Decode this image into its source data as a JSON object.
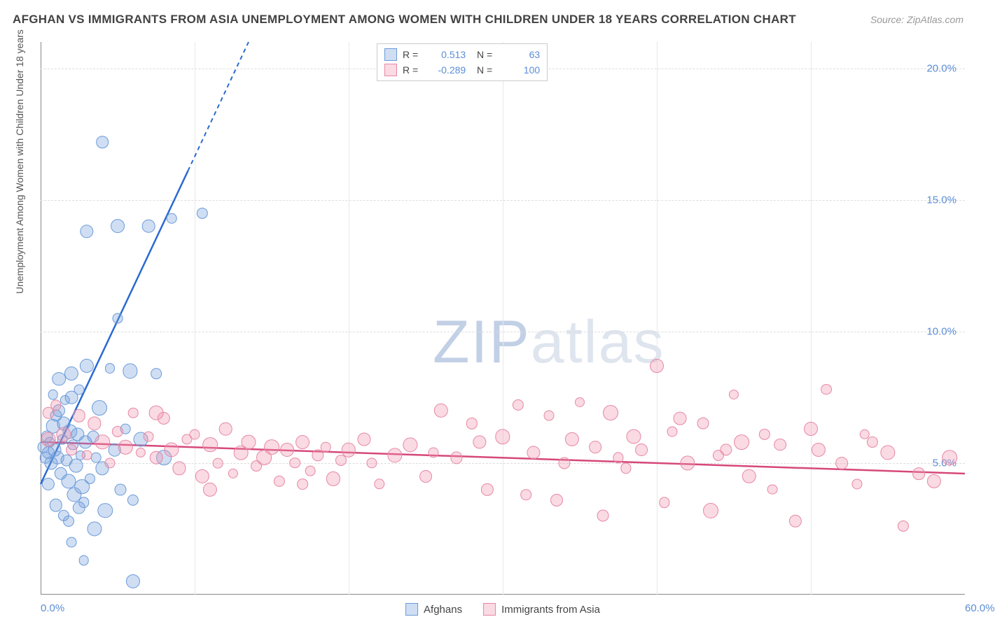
{
  "title": "AFGHAN VS IMMIGRANTS FROM ASIA UNEMPLOYMENT AMONG WOMEN WITH CHILDREN UNDER 18 YEARS CORRELATION CHART",
  "source": "Source: ZipAtlas.com",
  "y_axis_label": "Unemployment Among Women with Children Under 18 years",
  "watermark_a": "ZIP",
  "watermark_b": "atlas",
  "chart": {
    "type": "scatter",
    "xlim": [
      0,
      60
    ],
    "ylim": [
      0,
      21
    ],
    "x_ticks": [
      {
        "v": 0,
        "l": "0.0%"
      },
      {
        "v": 60,
        "l": "60.0%"
      }
    ],
    "y_ticks": [
      {
        "v": 5,
        "l": "5.0%"
      },
      {
        "v": 10,
        "l": "10.0%"
      },
      {
        "v": 15,
        "l": "15.0%"
      },
      {
        "v": 20,
        "l": "20.0%"
      }
    ],
    "grid_h": [
      5,
      10,
      15,
      20
    ],
    "grid_v": [
      10,
      20,
      30,
      40,
      50
    ],
    "background_color": "#ffffff",
    "grid_color": "#dddddd",
    "series": [
      {
        "name": "Afghans",
        "fill": "rgba(120,160,220,0.35)",
        "stroke": "#6a9bd8",
        "r_stat": "0.513",
        "n_stat": "63",
        "trend": {
          "x1": 0,
          "y1": 4.2,
          "x2": 13.5,
          "y2": 21,
          "color": "#2a6ad0",
          "dashFrom": 16.1
        },
        "points": [
          [
            0.2,
            5.6
          ],
          [
            0.3,
            5.2
          ],
          [
            0.4,
            6.0
          ],
          [
            0.5,
            5.4
          ],
          [
            0.6,
            5.8
          ],
          [
            0.7,
            5.0
          ],
          [
            0.8,
            6.4
          ],
          [
            0.9,
            5.5
          ],
          [
            1.0,
            6.8
          ],
          [
            1.1,
            5.2
          ],
          [
            1.2,
            7.0
          ],
          [
            1.3,
            4.6
          ],
          [
            1.4,
            5.9
          ],
          [
            1.5,
            6.5
          ],
          [
            1.6,
            7.4
          ],
          [
            1.7,
            5.1
          ],
          [
            1.8,
            4.3
          ],
          [
            1.9,
            6.2
          ],
          [
            2.0,
            8.4
          ],
          [
            2.1,
            5.7
          ],
          [
            2.2,
            3.8
          ],
          [
            2.3,
            4.9
          ],
          [
            2.4,
            6.1
          ],
          [
            2.5,
            7.8
          ],
          [
            2.6,
            5.3
          ],
          [
            2.7,
            4.1
          ],
          [
            2.8,
            3.5
          ],
          [
            2.9,
            5.8
          ],
          [
            3.0,
            8.7
          ],
          [
            3.2,
            4.4
          ],
          [
            3.4,
            6.0
          ],
          [
            3.6,
            5.2
          ],
          [
            3.8,
            7.1
          ],
          [
            4.0,
            4.8
          ],
          [
            4.2,
            3.2
          ],
          [
            4.5,
            8.6
          ],
          [
            4.8,
            5.5
          ],
          [
            5.0,
            10.5
          ],
          [
            5.2,
            4.0
          ],
          [
            5.5,
            6.3
          ],
          [
            5.8,
            8.5
          ],
          [
            6.0,
            3.6
          ],
          [
            6.5,
            5.9
          ],
          [
            7.0,
            14.0
          ],
          [
            7.5,
            8.4
          ],
          [
            8.0,
            5.2
          ],
          [
            2.0,
            2.0
          ],
          [
            2.8,
            1.3
          ],
          [
            3.5,
            2.5
          ],
          [
            4.0,
            17.2
          ],
          [
            5.0,
            14.0
          ],
          [
            8.5,
            14.3
          ],
          [
            10.5,
            14.5
          ],
          [
            3.0,
            13.8
          ],
          [
            1.5,
            3.0
          ],
          [
            0.5,
            4.2
          ],
          [
            1.0,
            3.4
          ],
          [
            1.8,
            2.8
          ],
          [
            2.5,
            3.3
          ],
          [
            6.0,
            0.5
          ],
          [
            0.8,
            7.6
          ],
          [
            1.2,
            8.2
          ],
          [
            2.0,
            7.5
          ]
        ]
      },
      {
        "name": "Immigrants from Asia",
        "fill": "rgba(240,150,175,0.35)",
        "stroke": "#e688a5",
        "r_stat": "-0.289",
        "n_stat": "100",
        "trend": {
          "x1": 0,
          "y1": 5.8,
          "x2": 60,
          "y2": 4.6,
          "color": "#d6487a"
        },
        "points": [
          [
            0.5,
            5.9
          ],
          [
            1.0,
            7.2
          ],
          [
            1.5,
            6.1
          ],
          [
            2.0,
            5.5
          ],
          [
            2.5,
            6.8
          ],
          [
            3.0,
            5.3
          ],
          [
            3.5,
            6.5
          ],
          [
            4.0,
            5.8
          ],
          [
            4.5,
            5.0
          ],
          [
            5.0,
            6.2
          ],
          [
            5.5,
            5.6
          ],
          [
            6.0,
            6.9
          ],
          [
            6.5,
            5.4
          ],
          [
            7.0,
            6.0
          ],
          [
            7.5,
            5.2
          ],
          [
            8.0,
            6.7
          ],
          [
            8.5,
            5.5
          ],
          [
            9.0,
            4.8
          ],
          [
            9.5,
            5.9
          ],
          [
            10.0,
            6.1
          ],
          [
            10.5,
            4.5
          ],
          [
            11.0,
            5.7
          ],
          [
            11.5,
            5.0
          ],
          [
            12.0,
            6.3
          ],
          [
            12.5,
            4.6
          ],
          [
            13.0,
            5.4
          ],
          [
            13.5,
            5.8
          ],
          [
            14.0,
            4.9
          ],
          [
            14.5,
            5.2
          ],
          [
            15.0,
            5.6
          ],
          [
            15.5,
            4.3
          ],
          [
            16.0,
            5.5
          ],
          [
            16.5,
            5.0
          ],
          [
            17.0,
            5.8
          ],
          [
            17.5,
            4.7
          ],
          [
            18.0,
            5.3
          ],
          [
            18.5,
            5.6
          ],
          [
            19.0,
            4.4
          ],
          [
            19.5,
            5.1
          ],
          [
            20.0,
            5.5
          ],
          [
            21.0,
            5.9
          ],
          [
            22.0,
            4.2
          ],
          [
            23.0,
            5.3
          ],
          [
            24.0,
            5.7
          ],
          [
            25.0,
            4.5
          ],
          [
            26.0,
            7.0
          ],
          [
            27.0,
            5.2
          ],
          [
            28.0,
            6.5
          ],
          [
            29.0,
            4.0
          ],
          [
            30.0,
            6.0
          ],
          [
            31.0,
            7.2
          ],
          [
            32.0,
            5.4
          ],
          [
            33.0,
            6.8
          ],
          [
            34.0,
            5.0
          ],
          [
            35.0,
            7.3
          ],
          [
            36.0,
            5.6
          ],
          [
            37.0,
            6.9
          ],
          [
            38.0,
            4.8
          ],
          [
            39.0,
            5.5
          ],
          [
            40.0,
            8.7
          ],
          [
            41.0,
            6.2
          ],
          [
            42.0,
            5.0
          ],
          [
            43.0,
            6.5
          ],
          [
            44.0,
            5.3
          ],
          [
            45.0,
            7.6
          ],
          [
            46.0,
            4.5
          ],
          [
            47.0,
            6.1
          ],
          [
            48.0,
            5.7
          ],
          [
            49.0,
            2.8
          ],
          [
            50.0,
            6.3
          ],
          [
            51.0,
            7.8
          ],
          [
            52.0,
            5.0
          ],
          [
            53.0,
            4.2
          ],
          [
            54.0,
            5.8
          ],
          [
            55.0,
            5.4
          ],
          [
            56.0,
            2.6
          ],
          [
            57.0,
            4.6
          ],
          [
            58.0,
            4.3
          ],
          [
            59.0,
            5.2
          ],
          [
            33.5,
            3.6
          ],
          [
            36.5,
            3.0
          ],
          [
            38.5,
            6.0
          ],
          [
            40.5,
            3.5
          ],
          [
            43.5,
            3.2
          ],
          [
            45.5,
            5.8
          ],
          [
            7.5,
            6.9
          ],
          [
            11.0,
            4.0
          ],
          [
            17.0,
            4.2
          ],
          [
            21.5,
            5.0
          ],
          [
            25.5,
            5.4
          ],
          [
            28.5,
            5.8
          ],
          [
            31.5,
            3.8
          ],
          [
            34.5,
            5.9
          ],
          [
            37.5,
            5.2
          ],
          [
            41.5,
            6.7
          ],
          [
            44.5,
            5.5
          ],
          [
            47.5,
            4.0
          ],
          [
            50.5,
            5.5
          ],
          [
            53.5,
            6.1
          ],
          [
            0.5,
            6.9
          ]
        ]
      }
    ]
  },
  "bottom_legend": [
    {
      "label": "Afghans",
      "fill": "rgba(120,160,220,0.35)",
      "stroke": "#6a9bd8"
    },
    {
      "label": "Immigrants from Asia",
      "fill": "rgba(240,150,175,0.35)",
      "stroke": "#e688a5"
    }
  ]
}
